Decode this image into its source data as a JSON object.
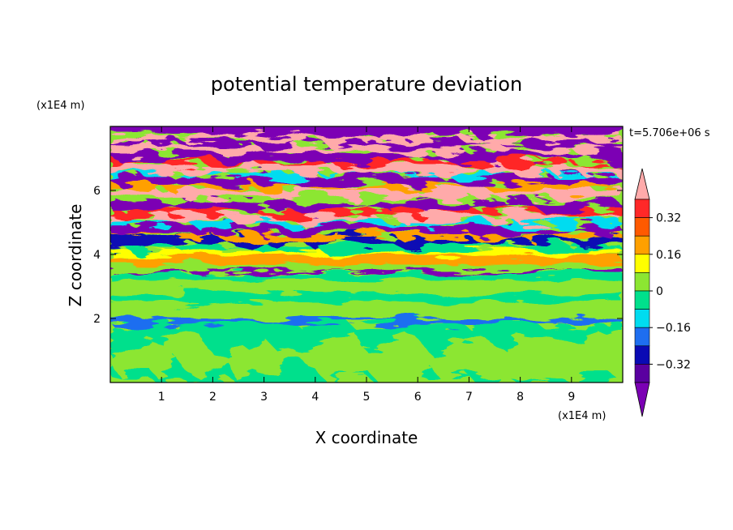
{
  "chart_data": {
    "type": "heatmap",
    "title": "potential temperature deviation",
    "xlabel": "X coordinate",
    "ylabel": "Z coordinate",
    "x_unit": "(x1E4 m)",
    "y_unit": "(x1E4 m)",
    "time_label": "t=5.706e+06 s",
    "xlim": [
      0,
      10
    ],
    "ylim": [
      0,
      8
    ],
    "x_ticks": [
      1,
      2,
      3,
      4,
      5,
      6,
      7,
      8,
      9
    ],
    "y_ticks": [
      2,
      4,
      6
    ],
    "colorbar": {
      "levels": [
        -0.4,
        -0.32,
        -0.24,
        -0.16,
        -0.08,
        0,
        0.08,
        0.16,
        0.24,
        0.32,
        0.4
      ],
      "tick_labels": [
        "0.32",
        "0.16",
        "0",
        "−0.16",
        "−0.32"
      ],
      "tick_values": [
        0.32,
        0.16,
        0,
        -0.16,
        -0.32
      ],
      "colors": [
        "#7b00b4",
        "#5a00a0",
        "#0a0ab4",
        "#1e6ef0",
        "#00dcf0",
        "#00e08c",
        "#8ce632",
        "#ffff00",
        "#ffa000",
        "#ff5a00",
        "#ff2828",
        "#ffaaaa"
      ],
      "extend": "both"
    },
    "field_description_bands": [
      {
        "z_range": [
          0,
          2.0
        ],
        "dominant": "green / light-green plumes"
      },
      {
        "z_range": [
          2.0,
          3.5
        ],
        "dominant": "light-green horizontal layers"
      },
      {
        "z_range": [
          3.5,
          4.2
        ],
        "dominant": "orange / yellow layer"
      },
      {
        "z_range": [
          4.2,
          8.0
        ],
        "dominant": "alternating purple and pink turbulent strata"
      }
    ]
  }
}
